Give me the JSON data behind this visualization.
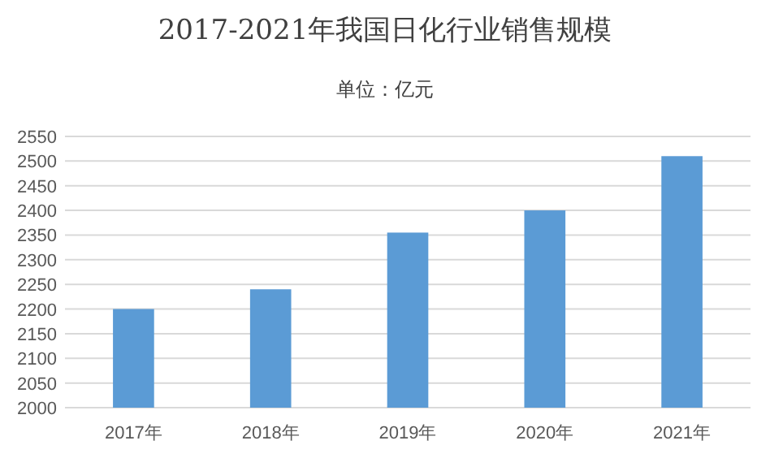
{
  "chart_data": {
    "type": "bar",
    "title": "2017-2021年我国日化行业销售规模",
    "subtitle": "单位：亿元",
    "categories": [
      "2017年",
      "2018年",
      "2019年",
      "2020年",
      "2021年"
    ],
    "values": [
      2200,
      2240,
      2355,
      2400,
      2510
    ],
    "color": "#5b9bd5",
    "ylim": [
      2000,
      2550
    ],
    "yticks": [
      2000,
      2050,
      2100,
      2150,
      2200,
      2250,
      2300,
      2350,
      2400,
      2450,
      2500,
      2550
    ],
    "grid": "y"
  }
}
